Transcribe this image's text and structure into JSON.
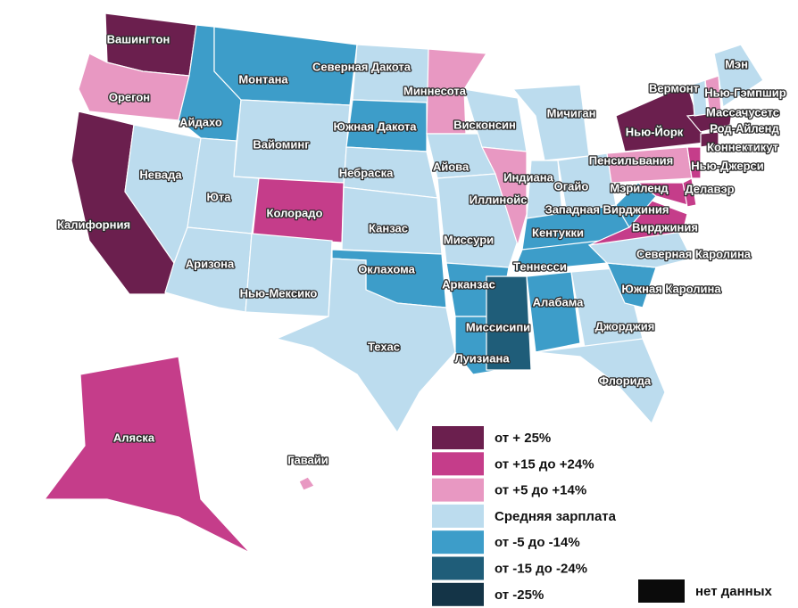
{
  "map": {
    "states": [
      {
        "label": "Вашингтон",
        "color": "#6b1f4e"
      },
      {
        "label": "Орегон",
        "color": "#e898c2"
      },
      {
        "label": "Калифорния",
        "color": "#6b1f4e"
      },
      {
        "label": "Невада",
        "color": "#bcdcee"
      },
      {
        "label": "Айдахо",
        "color": "#3d9dc9"
      },
      {
        "label": "Монтана",
        "color": "#3d9dc9"
      },
      {
        "label": "Вайоминг",
        "color": "#bcdcee"
      },
      {
        "label": "Юта",
        "color": "#bcdcee"
      },
      {
        "label": "Аризона",
        "color": "#bcdcee"
      },
      {
        "label": "Колорадо",
        "color": "#c53d8a"
      },
      {
        "label": "Нью-Мексико",
        "color": "#bcdcee"
      },
      {
        "label": "Северная Дакота",
        "color": "#bcdcee"
      },
      {
        "label": "Южная Дакота",
        "color": "#3d9dc9"
      },
      {
        "label": "Небраска",
        "color": "#bcdcee"
      },
      {
        "label": "Канзас",
        "color": "#bcdcee"
      },
      {
        "label": "Оклахома",
        "color": "#3d9dc9"
      },
      {
        "label": "Техас",
        "color": "#bcdcee"
      },
      {
        "label": "Миннесота",
        "color": "#e898c2"
      },
      {
        "label": "Айова",
        "color": "#bcdcee"
      },
      {
        "label": "Миссури",
        "color": "#bcdcee"
      },
      {
        "label": "Арканзас",
        "color": "#3d9dc9"
      },
      {
        "label": "Луизиана",
        "color": "#3d9dc9"
      },
      {
        "label": "Висконсин",
        "color": "#bcdcee"
      },
      {
        "label": "Иллинойс",
        "color": "#e898c2"
      },
      {
        "label": "Мичиган",
        "color": "#bcdcee"
      },
      {
        "label": "Индиана",
        "color": "#bcdcee"
      },
      {
        "label": "Огайо",
        "color": "#bcdcee"
      },
      {
        "label": "Кентукки",
        "color": "#3d9dc9"
      },
      {
        "label": "Теннесси",
        "color": "#3d9dc9"
      },
      {
        "label": "Миссисипи",
        "color": "#1f5d79"
      },
      {
        "label": "Алабама",
        "color": "#3d9dc9"
      },
      {
        "label": "Джорджия",
        "color": "#bcdcee"
      },
      {
        "label": "Флорида",
        "color": "#bcdcee"
      },
      {
        "label": "Южная Каролина",
        "color": "#3d9dc9"
      },
      {
        "label": "Северная Каролина",
        "color": "#bcdcee"
      },
      {
        "label": "Вирджиния",
        "color": "#c53d8a"
      },
      {
        "label": "Западная Вирджиния",
        "color": "#3d9dc9"
      },
      {
        "label": "Мэриленд",
        "color": "#c53d8a"
      },
      {
        "label": "Делавэр",
        "color": "#c53d8a"
      },
      {
        "label": "Пенсильвания",
        "color": "#e898c2"
      },
      {
        "label": "Нью-Йорк",
        "color": "#6b1f4e"
      },
      {
        "label": "Нью-Джерси",
        "color": "#c53d8a"
      },
      {
        "label": "Коннектикут",
        "color": "#6b1f4e"
      },
      {
        "label": "Род-Айленд",
        "color": "#6b1f4e"
      },
      {
        "label": "Массачусетс",
        "color": "#6b1f4e"
      },
      {
        "label": "Нью-Гэмпшир",
        "color": "#e898c2"
      },
      {
        "label": "Вермонт",
        "color": "#bcdcee"
      },
      {
        "label": "Мэн",
        "color": "#bcdcee"
      },
      {
        "label": "Аляска",
        "color": "#c53d8a"
      },
      {
        "label": "Гавайи",
        "color": "#e898c2"
      }
    ],
    "legend": [
      {
        "label": "от + 25%",
        "color": "#6b1f4e"
      },
      {
        "label": "от +15 до +24%",
        "color": "#c53d8a"
      },
      {
        "label": "от +5 до +14%",
        "color": "#e898c2"
      },
      {
        "label": "Средняя зарплата",
        "color": "#bcdcee"
      },
      {
        "label": "от -5 до -14%",
        "color": "#3d9dc9"
      },
      {
        "label": "от -15 до -24%",
        "color": "#1f5d79"
      },
      {
        "label": "от -25%",
        "color": "#143447"
      },
      {
        "label": "нет данных",
        "color": "#0b0b0b"
      }
    ]
  }
}
